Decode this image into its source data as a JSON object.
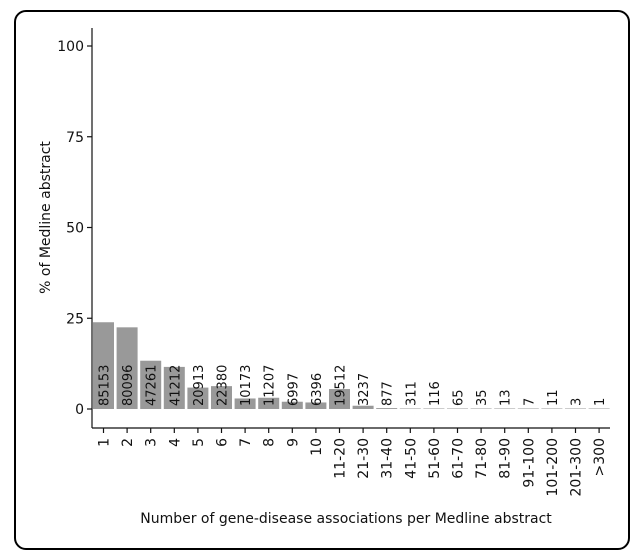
{
  "chart_data": {
    "type": "bar",
    "title": "",
    "xlabel": "Number of gene-disease associations  per Medline abstract",
    "ylabel": "% of Medline abstract",
    "ylim": [
      0,
      100
    ],
    "yticks": [
      0,
      25,
      50,
      75,
      100
    ],
    "grid": false,
    "bar_color": "#999999",
    "categories": [
      "1",
      "2",
      "3",
      "4",
      "5",
      "6",
      "7",
      "8",
      "9",
      "10",
      "11-20",
      "21-30",
      "31-40",
      "41-50",
      "51-60",
      "61-70",
      "71-80",
      "81-90",
      "91-100",
      "101-200",
      "201-300",
      ">300"
    ],
    "values": [
      23.9,
      22.5,
      13.3,
      11.6,
      5.9,
      6.3,
      2.9,
      3.1,
      2.0,
      1.8,
      5.5,
      0.9,
      0.25,
      0.09,
      0.03,
      0.02,
      0.01,
      0.004,
      0.002,
      0.003,
      0.001,
      0.0003
    ],
    "data_labels": [
      "85153",
      "80096",
      "47261",
      "41212",
      "20913",
      "22380",
      "10173",
      "11207",
      "6997",
      "6396",
      "19512",
      "3237",
      "877",
      "311",
      "116",
      "65",
      "35",
      "13",
      "7",
      "11",
      "3",
      "1"
    ]
  }
}
